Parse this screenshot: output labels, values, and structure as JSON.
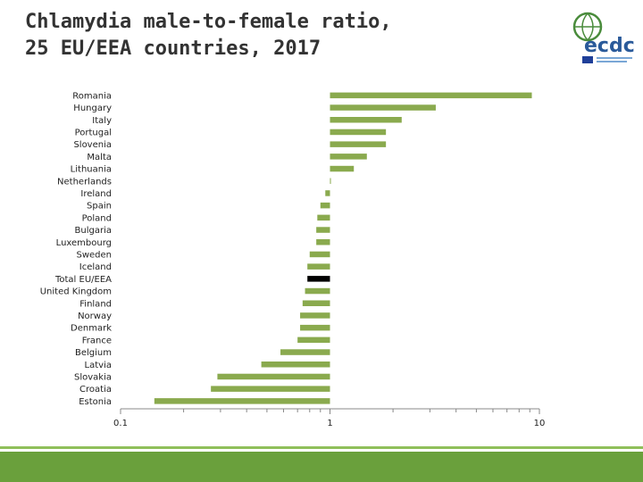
{
  "title_line1": "Chlamydia male-to-female ratio,",
  "title_line2": "25 EU/EEA countries, 2017",
  "logo_text": "ecdc",
  "colors": {
    "bar": "#8aaa4e",
    "highlight": "#000000",
    "title": "#333333",
    "footer": "#6aa03c"
  },
  "chart_data": {
    "type": "bar",
    "orientation": "horizontal",
    "xscale": "log",
    "xlim": [
      0.1,
      10
    ],
    "baseline": 1,
    "xticks": [
      0.1,
      1,
      10
    ],
    "xticklabels": [
      "0.1",
      "1",
      "10"
    ],
    "title": "",
    "xlabel": "",
    "ylabel": "",
    "grid": false,
    "categories": [
      "Romania",
      "Hungary",
      "Italy",
      "Portugal",
      "Slovenia",
      "Malta",
      "Lithuania",
      "Netherlands",
      "Ireland",
      "Spain",
      "Poland",
      "Bulgaria",
      "Luxembourg",
      "Sweden",
      "Iceland",
      "Total EU/EEA",
      "United Kingdom",
      "Finland",
      "Norway",
      "Denmark",
      "France",
      "Belgium",
      "Latvia",
      "Slovakia",
      "Croatia",
      "Estonia"
    ],
    "values": [
      9.2,
      3.2,
      2.2,
      1.85,
      1.85,
      1.5,
      1.3,
      1.0,
      0.95,
      0.9,
      0.87,
      0.86,
      0.86,
      0.8,
      0.78,
      0.78,
      0.76,
      0.74,
      0.72,
      0.72,
      0.7,
      0.58,
      0.47,
      0.29,
      0.27,
      0.145
    ],
    "highlight": "Total EU/EEA"
  }
}
